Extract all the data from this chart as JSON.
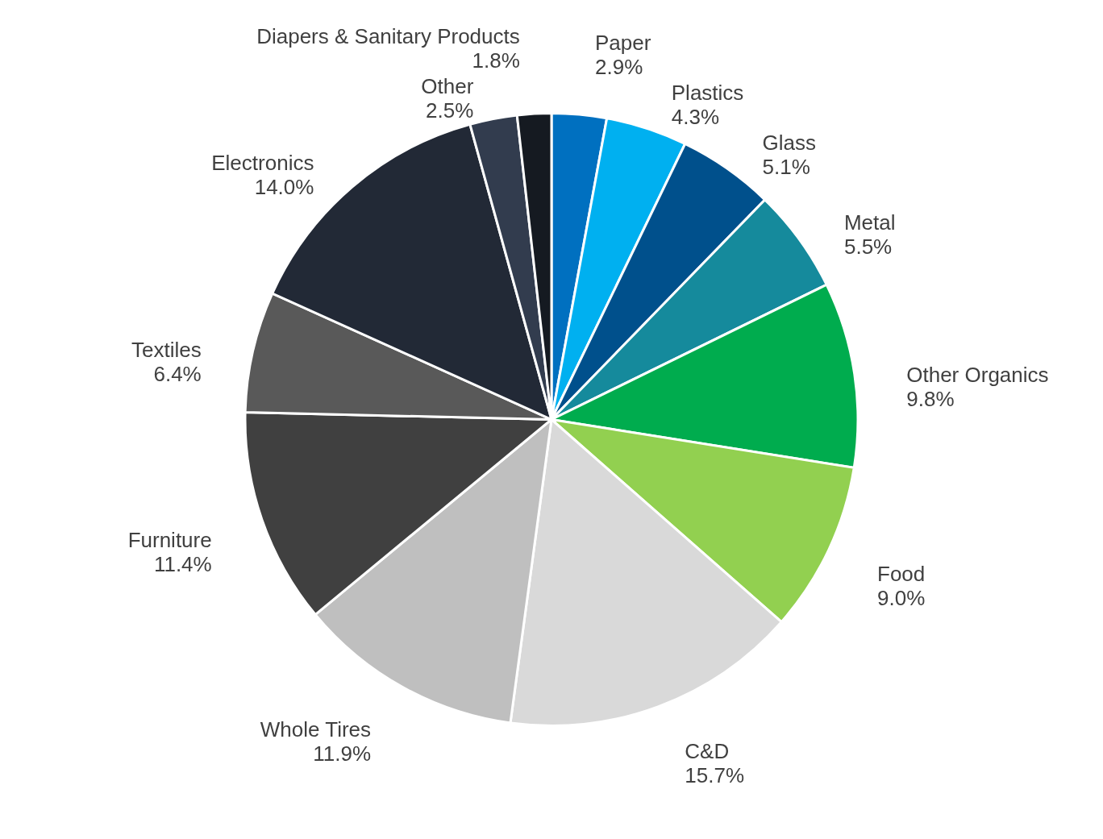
{
  "chart_data": {
    "type": "pie",
    "categories": [
      "Paper",
      "Plastics",
      "Glass",
      "Metal",
      "Other Organics",
      "Food",
      "C&D",
      "Whole Tires",
      "Furniture",
      "Textiles",
      "Electronics",
      "Other",
      "Diapers & Sanitary Products"
    ],
    "values": [
      2.9,
      4.3,
      5.1,
      5.5,
      9.8,
      9.0,
      15.7,
      11.9,
      11.4,
      6.4,
      14.0,
      2.5,
      1.8
    ],
    "value_labels": [
      "2.9%",
      "4.3%",
      "5.1%",
      "5.5%",
      "9.8%",
      "9.0%",
      "15.7%",
      "11.9%",
      "11.4%",
      "6.4%",
      "14.0%",
      "2.5%",
      "1.8%"
    ],
    "colors": [
      "#0070c0",
      "#00b0f0",
      "#00508c",
      "#158a9c",
      "#00ac4e",
      "#92d050",
      "#d9d9d9",
      "#bfbfbf",
      "#404040",
      "#595959",
      "#222936",
      "#323c4e",
      "#151a21"
    ]
  }
}
